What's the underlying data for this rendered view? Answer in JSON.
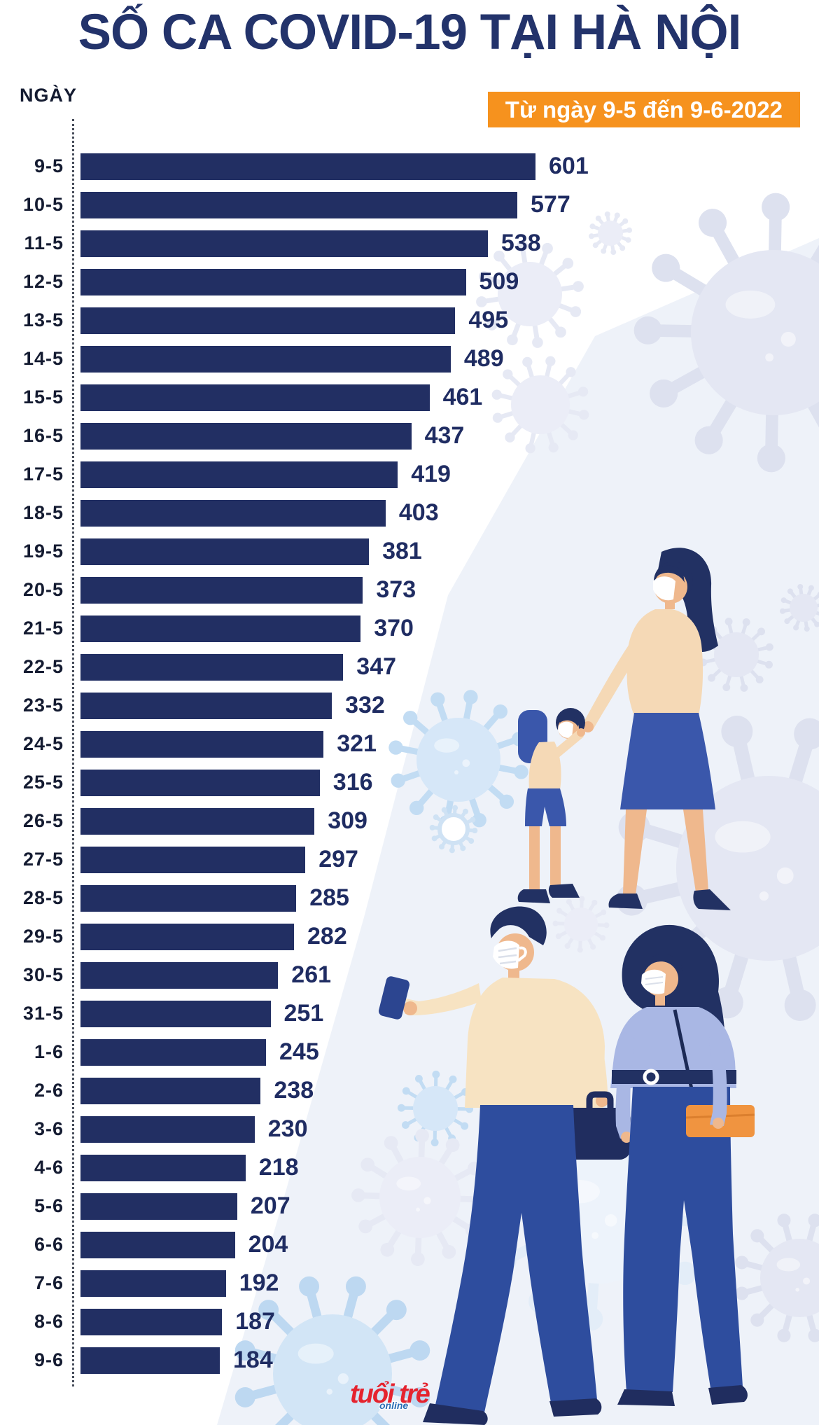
{
  "title": "SỐ CA COVID-19 TẠI HÀ NỘI",
  "period_badge": "Từ ngày 9-5 đến 9-6-2022",
  "axis_label": "NGÀY",
  "logo": {
    "main": "tuổi trẻ",
    "sub": "online"
  },
  "colors": {
    "background": "#ffffff",
    "tint": "#eef2f9",
    "bar": "#222f63",
    "title": "#23336b",
    "badge_bg": "#f6921e",
    "badge_text": "#ffffff",
    "value_label": "#1f2c62",
    "date_label": "#141b31",
    "logo_red": "#e5232e",
    "logo_blue": "#2a6db5",
    "virus_lavender": "#e4e7f3",
    "virus_blue": "#d6e7f8"
  },
  "chart_data": {
    "type": "bar",
    "orientation": "horizontal",
    "title": "SỐ CA COVID-19 TẠI HÀ NỘI",
    "subtitle": "Từ ngày 9-5 đến 9-6-2022",
    "ylabel": "NGÀY",
    "xlabel": "",
    "xlim": [
      0,
      601
    ],
    "grid": false,
    "legend": false,
    "value_labels": true,
    "categories": [
      "9-5",
      "10-5",
      "11-5",
      "12-5",
      "13-5",
      "14-5",
      "15-5",
      "16-5",
      "17-5",
      "18-5",
      "19-5",
      "20-5",
      "21-5",
      "22-5",
      "23-5",
      "24-5",
      "25-5",
      "26-5",
      "27-5",
      "28-5",
      "29-5",
      "30-5",
      "31-5",
      "1-6",
      "2-6",
      "3-6",
      "4-6",
      "5-6",
      "6-6",
      "7-6",
      "8-6",
      "9-6"
    ],
    "values": [
      601,
      577,
      538,
      509,
      495,
      489,
      461,
      437,
      419,
      403,
      381,
      373,
      370,
      347,
      332,
      321,
      316,
      309,
      297,
      285,
      282,
      261,
      251,
      245,
      238,
      230,
      218,
      207,
      204,
      192,
      187,
      184
    ]
  }
}
